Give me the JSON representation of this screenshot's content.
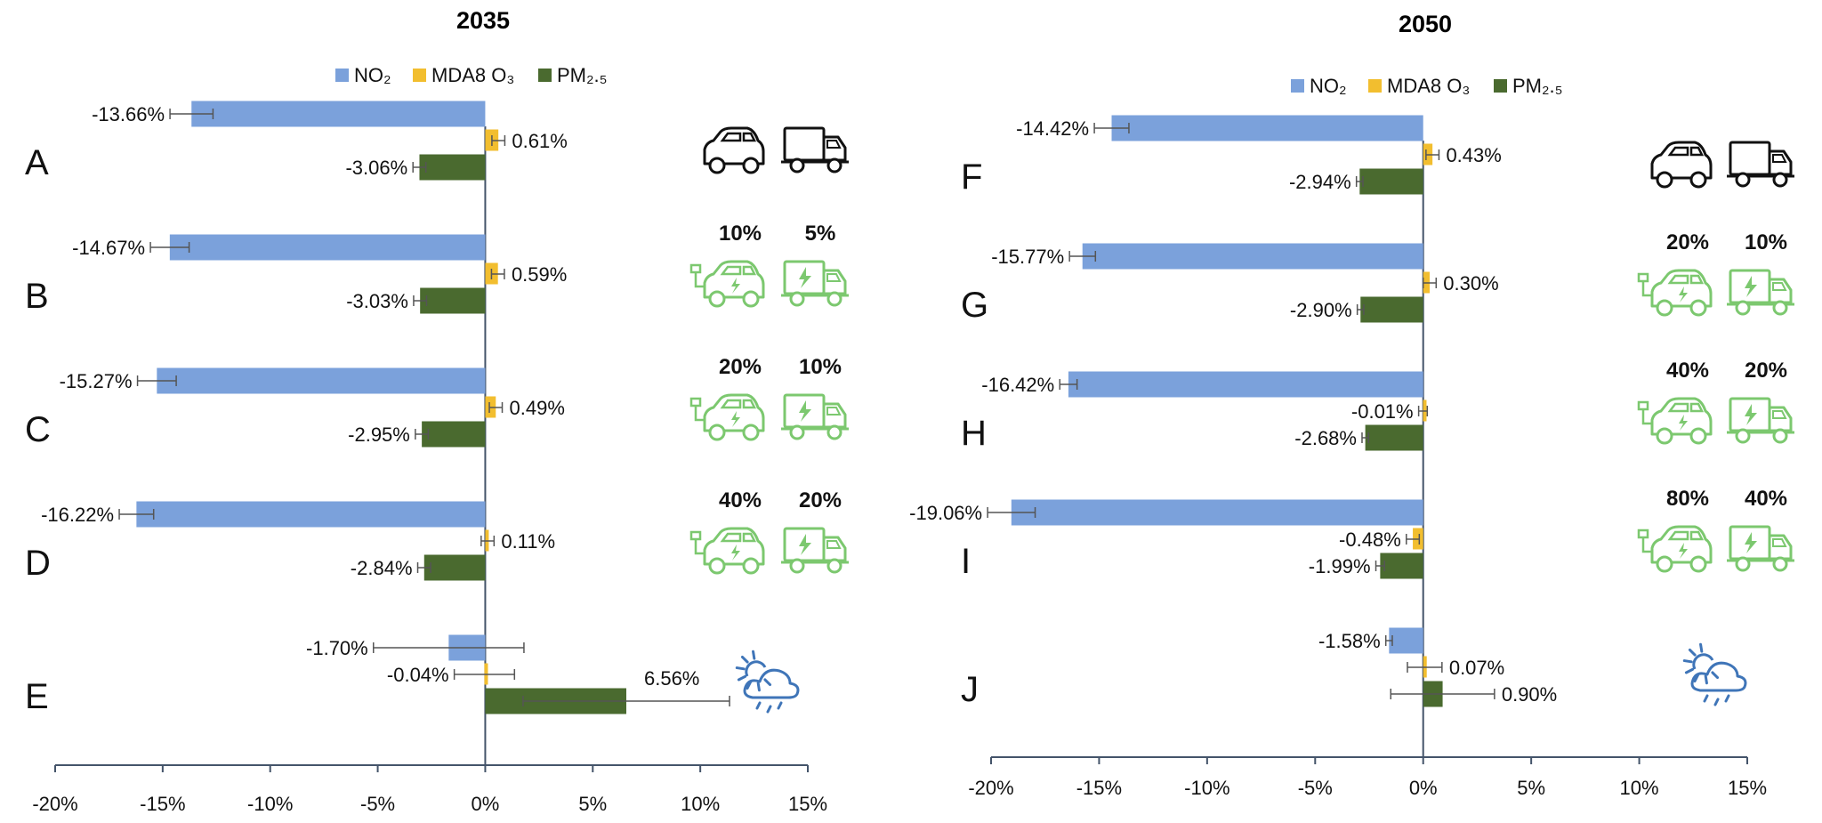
{
  "chart_data": [
    {
      "type": "bar",
      "orientation": "horizontal",
      "title": "2035",
      "legend": [
        "NO₂",
        "MDA8 O₃",
        "PM₂.₅"
      ],
      "legend_placement": "top",
      "x_ticks": [
        "-20%",
        "-15%",
        "-10%",
        "-5%",
        "0%",
        "5%",
        "10%",
        "15%"
      ],
      "xlim": [
        -20,
        15
      ],
      "categories": [
        "A",
        "B",
        "C",
        "D",
        "E"
      ],
      "series": [
        {
          "name": "NO₂",
          "values": [
            -13.66,
            -14.67,
            -15.27,
            -16.22,
            -1.7
          ],
          "labels": [
            "-13.66%",
            "-14.67%",
            "-15.27%",
            "-16.22%",
            "-1.70%"
          ],
          "err": [
            1.0,
            0.9,
            0.9,
            0.8,
            3.5
          ]
        },
        {
          "name": "MDA8 O₃",
          "values": [
            0.61,
            0.59,
            0.49,
            0.11,
            -0.04
          ],
          "labels": [
            "0.61%",
            "0.59%",
            "0.49%",
            "0.11%",
            "-0.04%"
          ],
          "err": [
            0.3,
            0.3,
            0.3,
            0.3,
            1.4
          ]
        },
        {
          "name": "PM₂.₅",
          "values": [
            -3.06,
            -3.03,
            -2.95,
            -2.84,
            6.56
          ],
          "labels": [
            "-3.06%",
            "-3.03%",
            "-2.95%",
            "-2.84%",
            "6.56%"
          ],
          "err": [
            0.3,
            0.3,
            0.3,
            0.3,
            4.8
          ]
        }
      ],
      "icons": [
        {
          "car": "car-icon",
          "truck": "truck-icon",
          "car_pct": "",
          "truck_pct": "",
          "color": "#111111"
        },
        {
          "car": "electric-car-icon",
          "truck": "electric-truck-icon",
          "car_pct": "10%",
          "truck_pct": "5%",
          "color": "#7cc86f"
        },
        {
          "car": "electric-car-icon",
          "truck": "electric-truck-icon",
          "car_pct": "20%",
          "truck_pct": "10%",
          "color": "#7cc86f"
        },
        {
          "car": "electric-car-icon",
          "truck": "electric-truck-icon",
          "car_pct": "40%",
          "truck_pct": "20%",
          "color": "#7cc86f"
        },
        {
          "weather": "sun-cloud-rain-icon",
          "color": "#3f75b8"
        }
      ]
    },
    {
      "type": "bar",
      "orientation": "horizontal",
      "title": "2050",
      "legend": [
        "NO₂",
        "MDA8 O₃",
        "PM₂.₅"
      ],
      "legend_placement": "top",
      "x_ticks": [
        "-20%",
        "-15%",
        "-10%",
        "-5%",
        "0%",
        "5%",
        "10%",
        "15%"
      ],
      "xlim": [
        -20,
        15
      ],
      "categories": [
        "F",
        "G",
        "H",
        "I",
        "J"
      ],
      "series": [
        {
          "name": "NO₂",
          "values": [
            -14.42,
            -15.77,
            -16.42,
            -19.06,
            -1.58
          ],
          "labels": [
            "-14.42%",
            "-15.77%",
            "-16.42%",
            "-19.06%",
            "-1.58%"
          ],
          "err": [
            0.8,
            0.6,
            0.4,
            1.1,
            0.15
          ]
        },
        {
          "name": "MDA8 O₃",
          "values": [
            0.43,
            0.3,
            -0.01,
            -0.48,
            0.07
          ],
          "labels": [
            "0.43%",
            "0.30%",
            "-0.01%",
            "-0.48%",
            "0.07%"
          ],
          "err": [
            0.3,
            0.3,
            0.2,
            0.3,
            0.8
          ]
        },
        {
          "name": "PM₂.₅",
          "values": [
            -2.94,
            -2.9,
            -2.68,
            -1.99,
            0.9
          ],
          "labels": [
            "-2.94%",
            "-2.90%",
            "-2.68%",
            "-1.99%",
            "0.90%"
          ],
          "err": [
            0.15,
            0.15,
            0.15,
            0.2,
            2.4
          ]
        }
      ],
      "icons": [
        {
          "car": "car-icon",
          "truck": "truck-icon",
          "car_pct": "",
          "truck_pct": "",
          "color": "#111111"
        },
        {
          "car": "electric-car-icon",
          "truck": "electric-truck-icon",
          "car_pct": "20%",
          "truck_pct": "10%",
          "color": "#7cc86f"
        },
        {
          "car": "electric-car-icon",
          "truck": "electric-truck-icon",
          "car_pct": "40%",
          "truck_pct": "20%",
          "color": "#7cc86f"
        },
        {
          "car": "electric-car-icon",
          "truck": "electric-truck-icon",
          "car_pct": "80%",
          "truck_pct": "40%",
          "color": "#7cc86f"
        },
        {
          "weather": "sun-cloud-rain-icon",
          "color": "#3f75b8"
        }
      ]
    }
  ],
  "colors": {
    "no2": "#7ba1db",
    "o3": "#f2be2f",
    "pm25": "#4a6a2f",
    "axis": "#44546a",
    "error_bar": "#555555"
  }
}
